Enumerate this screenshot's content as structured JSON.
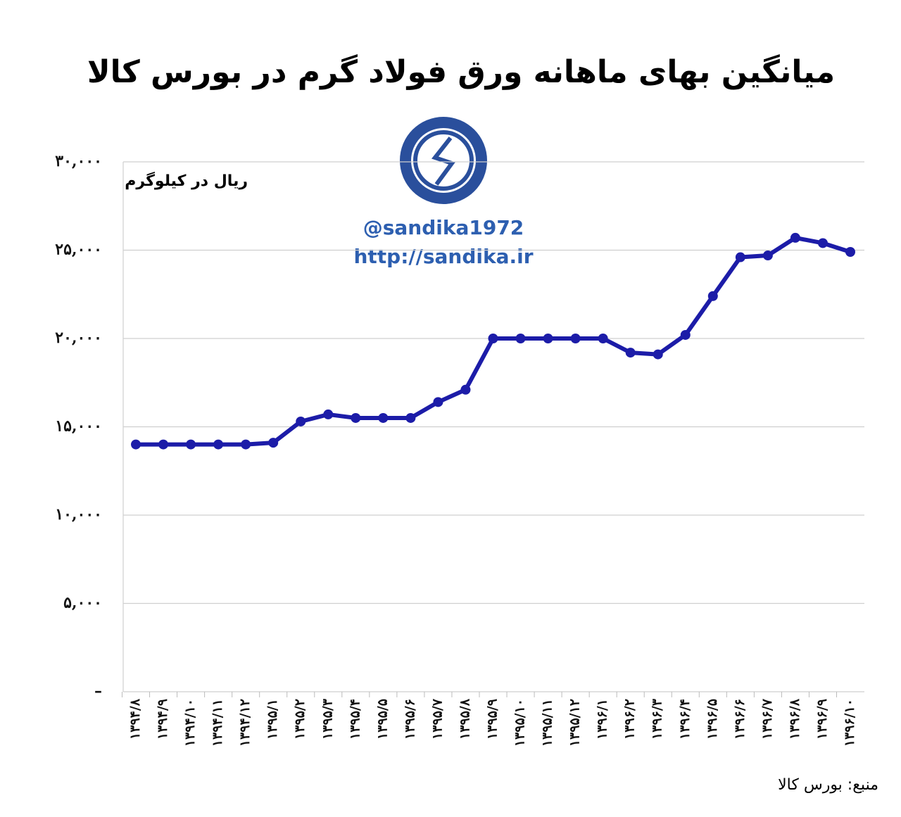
{
  "chart_data": {
    "type": "line",
    "title": "میانگین بهای ماهانه ورق فولاد گرم در بورس کالا",
    "y_label": "ریال در کیلوگرم",
    "watermark": [
      "@sandika1972",
      "http://sandika.ir"
    ],
    "source": "منبع: بورس کالا",
    "categories": [
      "۱۳۹۴/۸",
      "۱۳۹۴/۹",
      "۱۳۹۴/۱۰",
      "۱۳۹۴/۱۱",
      "۱۳۹۴/۱۲",
      "۱۳۹۵/۱",
      "۱۳۹۵/۲",
      "۱۳۹۵/۳",
      "۱۳۹۵/۴",
      "۱۳۹۵/۵",
      "۱۳۹۵/۶",
      "۱۳۹۵/۷",
      "۱۳۹۵/۸",
      "۱۳۹۵/۹",
      "۱۳۹۵/۱۰",
      "۱۳۹۵/۱۱",
      "۱۳۹۵/۱۲",
      "۱۳۹۶/۱",
      "۱۳۹۶/۲",
      "۱۳۹۶/۳",
      "۱۳۹۶/۴",
      "۱۳۹۶/۵",
      "۱۳۹۶/۶",
      "۱۳۹۶/۷",
      "۱۳۹۶/۸",
      "۱۳۹۶/۹",
      "۱۳۹۶/۱۰"
    ],
    "series": [
      {
        "name": "ورق فولاد گرم",
        "color": "#1c1ca8",
        "values": [
          14000,
          14000,
          14000,
          14000,
          14000,
          14100,
          15300,
          15700,
          15500,
          15500,
          15500,
          16400,
          17100,
          20000,
          20000,
          20000,
          20000,
          20000,
          19200,
          19100,
          20200,
          22400,
          24600,
          24700,
          25700,
          25400,
          24900
        ]
      }
    ],
    "ylim": [
      0,
      30000
    ],
    "yticks": [
      {
        "value": 0,
        "label": "–"
      },
      {
        "value": 5000,
        "label": "۵,۰۰۰"
      },
      {
        "value": 10000,
        "label": "۱۰,۰۰۰"
      },
      {
        "value": 15000,
        "label": "۱۵,۰۰۰"
      },
      {
        "value": 20000,
        "label": "۲۰,۰۰۰"
      },
      {
        "value": 25000,
        "label": "۲۵,۰۰۰"
      },
      {
        "value": 30000,
        "label": "۳۰,۰۰۰"
      }
    ],
    "grid": true
  }
}
